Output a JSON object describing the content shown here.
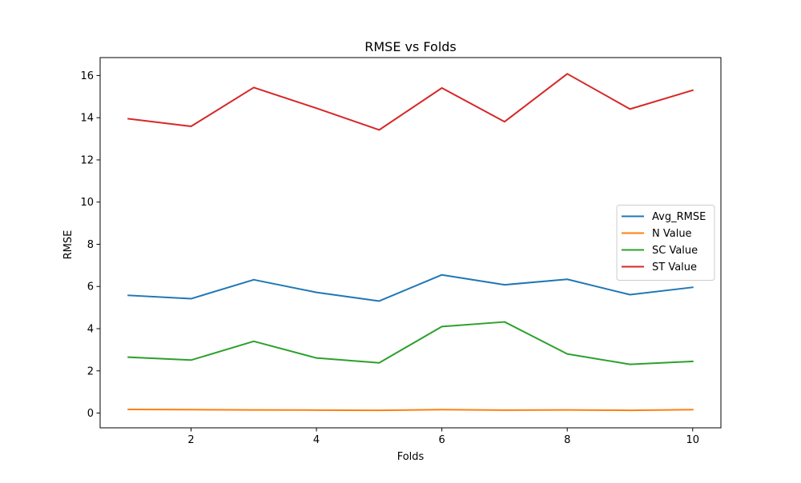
{
  "chart_data": {
    "type": "line",
    "title": "RMSE vs Folds",
    "xlabel": "Folds",
    "ylabel": "RMSE",
    "x": [
      1,
      2,
      3,
      4,
      5,
      6,
      7,
      8,
      9,
      10
    ],
    "xlim": [
      0.55,
      10.45
    ],
    "ylim": [
      -0.7,
      16.85
    ],
    "xticks": [
      2,
      4,
      6,
      8,
      10
    ],
    "yticks": [
      0,
      2,
      4,
      6,
      8,
      10,
      12,
      14,
      16
    ],
    "grid": false,
    "legend_position": "center-right",
    "series": [
      {
        "name": "Avg_RMSE",
        "color": "#1f77b4",
        "values": [
          5.58,
          5.42,
          6.32,
          5.72,
          5.31,
          6.55,
          6.08,
          6.34,
          5.61,
          5.96
        ]
      },
      {
        "name": "N Value",
        "color": "#ff7f0e",
        "values": [
          0.17,
          0.16,
          0.15,
          0.14,
          0.13,
          0.16,
          0.14,
          0.15,
          0.13,
          0.16
        ]
      },
      {
        "name": "SC Value",
        "color": "#2ca02c",
        "values": [
          2.65,
          2.51,
          3.4,
          2.61,
          2.38,
          4.1,
          4.32,
          2.8,
          2.31,
          2.45
        ]
      },
      {
        "name": "ST Value",
        "color": "#d62728",
        "values": [
          13.95,
          13.59,
          15.43,
          14.45,
          13.42,
          15.41,
          13.81,
          16.08,
          14.41,
          15.3
        ]
      }
    ]
  }
}
